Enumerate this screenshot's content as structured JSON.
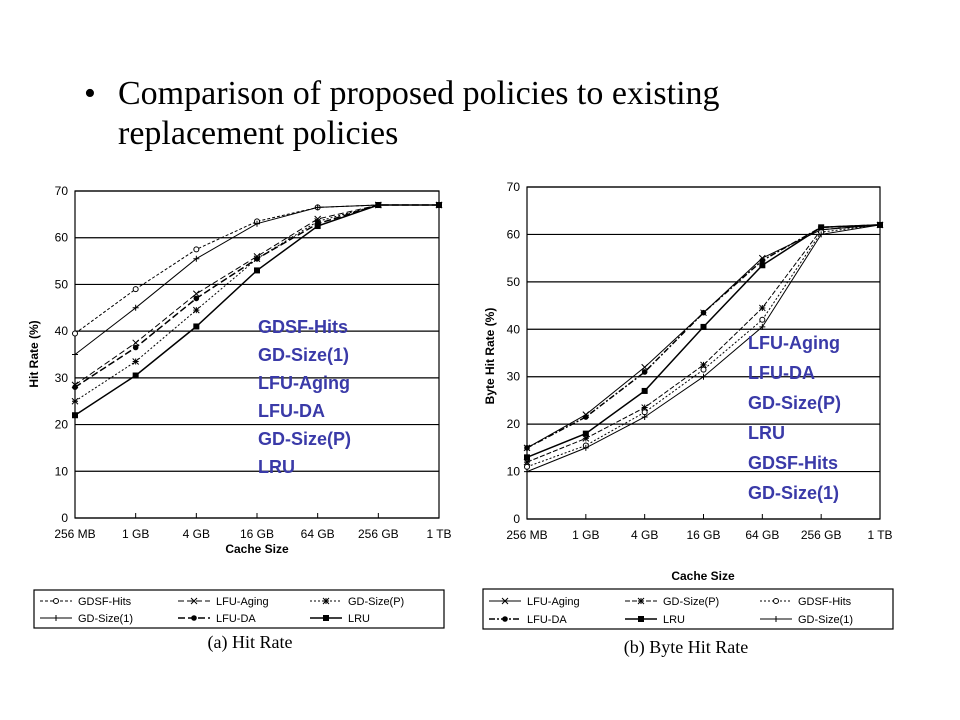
{
  "slide": {
    "bullet_symbol": "•",
    "bullet_text": "Comparison of proposed policies to existing replacement policies"
  },
  "chart_data": [
    {
      "type": "line",
      "caption": "(a) Hit Rate",
      "xlabel": "Cache Size",
      "ylabel": "Hit Rate (%)",
      "categories": [
        "256 MB",
        "1 GB",
        "4 GB",
        "16 GB",
        "64 GB",
        "256 GB",
        "1 TB"
      ],
      "ylim": [
        0,
        70
      ],
      "yticks": [
        0,
        10,
        20,
        30,
        40,
        50,
        60,
        70
      ],
      "grid": true,
      "series": [
        {
          "name": "GDSF-Hits",
          "values": [
            39.5,
            49,
            57.5,
            63.5,
            66.5,
            67,
            67
          ]
        },
        {
          "name": "LFU-Aging",
          "values": [
            28.5,
            37.5,
            48,
            56,
            64,
            67,
            67
          ]
        },
        {
          "name": "GD-Size(P)",
          "values": [
            25,
            33.5,
            44.5,
            55.5,
            63.5,
            67,
            67
          ]
        },
        {
          "name": "GD-Size(1)",
          "values": [
            35,
            45,
            55.5,
            63,
            66.5,
            67,
            67
          ]
        },
        {
          "name": "LFU-DA",
          "values": [
            28,
            36.5,
            47,
            55.5,
            63,
            67,
            67
          ]
        },
        {
          "name": "LRU",
          "values": [
            22,
            30.5,
            41,
            53,
            62.5,
            67,
            67
          ]
        }
      ],
      "annotations": [
        "GDSF-Hits",
        "GD-Size(1)",
        "LFU-Aging",
        "LFU-DA",
        "GD-Size(P)",
        "LRU"
      ],
      "legend_placement": "bottom"
    },
    {
      "type": "line",
      "caption": "(b) Byte Hit Rate",
      "xlabel": "Cache Size",
      "ylabel": "Byte Hit Rate (%)",
      "categories": [
        "256 MB",
        "1 GB",
        "4 GB",
        "16 GB",
        "64 GB",
        "256 GB",
        "1 TB"
      ],
      "ylim": [
        0,
        70
      ],
      "yticks": [
        0,
        10,
        20,
        30,
        40,
        50,
        60,
        70
      ],
      "grid": true,
      "series": [
        {
          "name": "LFU-Aging",
          "values": [
            15,
            22,
            32,
            43.5,
            55,
            61,
            62
          ]
        },
        {
          "name": "GD-Size(P)",
          "values": [
            12,
            17,
            23.5,
            32.5,
            44.5,
            61,
            62
          ]
        },
        {
          "name": "GDSF-Hits",
          "values": [
            11,
            15.5,
            22.5,
            31.5,
            42,
            60.5,
            62
          ]
        },
        {
          "name": "LFU-DA",
          "values": [
            15,
            21.5,
            31,
            43.5,
            54.5,
            61.5,
            62
          ]
        },
        {
          "name": "LRU",
          "values": [
            13,
            18,
            27,
            40.5,
            53.5,
            61.5,
            62
          ]
        },
        {
          "name": "GD-Size(1)",
          "values": [
            10,
            15,
            21.5,
            30,
            40.5,
            60,
            62
          ]
        }
      ],
      "annotations": [
        "LFU-Aging",
        "LFU-DA",
        "GD-Size(P)",
        "LRU",
        "GDSF-Hits",
        "GD-Size(1)"
      ],
      "legend_placement": "bottom"
    }
  ]
}
